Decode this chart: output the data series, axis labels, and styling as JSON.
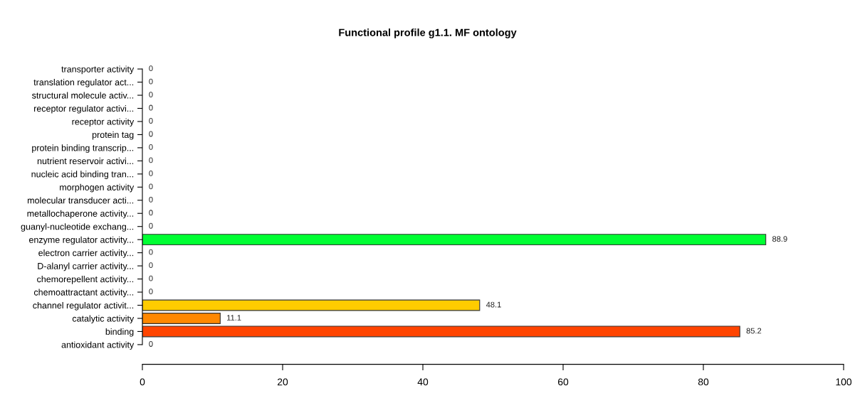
{
  "chart_data": {
    "type": "bar",
    "orientation": "horizontal",
    "title": "Functional profile g1.1. MF ontology",
    "categories": [
      "transporter activity",
      "translation regulator act...",
      "structural molecule activ...",
      "receptor regulator activi...",
      "receptor activity",
      "protein tag",
      "protein binding transcrip...",
      "nutrient reservoir activi...",
      "nucleic acid binding tran...",
      "morphogen activity",
      "molecular transducer acti...",
      "metallochaperone activity...",
      "guanyl-nucleotide exchang...",
      "enzyme regulator activity...",
      "electron carrier activity...",
      "D-alanyl carrier activity...",
      "chemorepellent activity...",
      "chemoattractant activity...",
      "channel regulator activit...",
      "catalytic activity",
      "binding",
      "antioxidant activity"
    ],
    "values": [
      0,
      0,
      0,
      0,
      0,
      0,
      0,
      0,
      0,
      0,
      0,
      0,
      0,
      88.9,
      0,
      0,
      0,
      0,
      48.1,
      11.1,
      85.2,
      0
    ],
    "colors": [
      "#ffffff",
      "#ffffff",
      "#ffffff",
      "#ffffff",
      "#ffffff",
      "#ffffff",
      "#ffffff",
      "#ffffff",
      "#ffffff",
      "#ffffff",
      "#ffffff",
      "#ffffff",
      "#ffffff",
      "#00ff33",
      "#ffffff",
      "#ffffff",
      "#ffffff",
      "#ffffff",
      "#ffcc00",
      "#ff8800",
      "#ff4400",
      "#ffffff"
    ],
    "xlim": [
      0,
      100
    ],
    "xticks": [
      0,
      20,
      40,
      60,
      80,
      100
    ],
    "data_labels": true,
    "grid": false,
    "legend": false
  }
}
